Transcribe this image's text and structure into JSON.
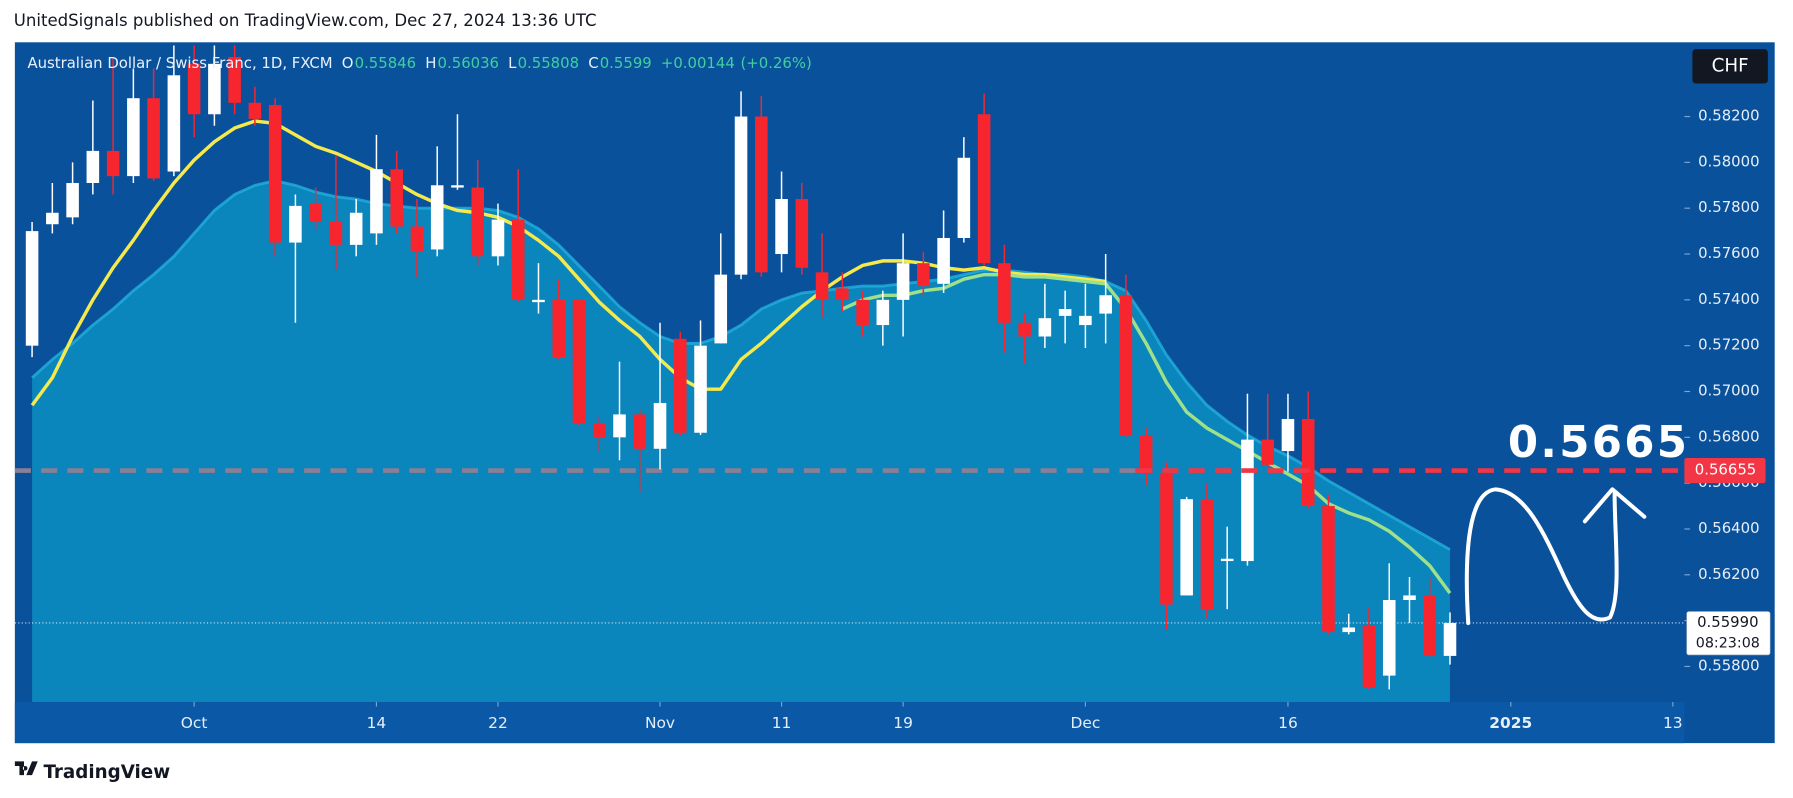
{
  "header": {
    "publisher": "UnitedSignals published on TradingView.com, Dec 27, 2024 13:36 UTC",
    "brand": "TradingView"
  },
  "chart_data": {
    "type": "candlestick",
    "title": "Australian Dollar  / Swiss Franc, 1D, FXCM",
    "currency": "CHF",
    "legend": [
      {
        "label": "O",
        "value": 0.55846
      },
      {
        "label": "H",
        "value": 0.56036
      },
      {
        "label": "L",
        "value": 0.55808
      },
      {
        "label": "C",
        "value": 0.5599
      }
    ],
    "change": {
      "value": 0.00144,
      "label": "+0.00144"
    },
    "change_percent": {
      "value": 0.26,
      "label": "(+0.26%)"
    },
    "open": [
      0.572,
      0.5773,
      0.5776,
      0.5791,
      0.5805,
      0.5794,
      0.5828,
      0.5796,
      0.5843,
      0.5821,
      0.5846,
      0.5826,
      0.5825,
      0.5765,
      0.5782,
      0.5774,
      0.5764,
      0.5769,
      0.5797,
      0.5772,
      0.5762,
      0.5789,
      0.5789,
      0.5759,
      0.5775,
      0.5739,
      0.574,
      0.574,
      0.5686,
      0.568,
      0.569,
      0.5675,
      0.5723,
      0.5682,
      0.5721,
      0.5751,
      0.582,
      0.576,
      0.5784,
      0.5752,
      0.5745,
      0.574,
      0.5729,
      0.574,
      0.5756,
      0.5747,
      0.5767,
      0.5821,
      0.5756,
      0.573,
      0.5724,
      0.5733,
      0.5729,
      0.5734,
      0.5742,
      0.5681,
      0.5664,
      0.5611,
      0.5653,
      0.5626,
      0.5626,
      0.5679,
      0.5674,
      0.5688,
      0.565,
      0.5595,
      0.5598,
      0.5576,
      0.5609,
      0.5611,
      0.55846
    ],
    "high": [
      0.5774,
      0.5791,
      0.58,
      0.5827,
      0.5846,
      0.5841,
      0.5841,
      0.5851,
      0.5851,
      0.5851,
      0.5851,
      0.5833,
      0.5828,
      0.5786,
      0.5789,
      0.5803,
      0.5784,
      0.5812,
      0.5805,
      0.5784,
      0.5807,
      0.5821,
      0.5801,
      0.5782,
      0.5797,
      0.5756,
      0.5749,
      0.574,
      0.5689,
      0.5713,
      0.5692,
      0.573,
      0.5726,
      0.5731,
      0.5769,
      0.5831,
      0.5829,
      0.5796,
      0.5791,
      0.5769,
      0.5752,
      0.5744,
      0.5744,
      0.5769,
      0.5761,
      0.5779,
      0.5811,
      0.583,
      0.5764,
      0.5734,
      0.5747,
      0.5744,
      0.5747,
      0.576,
      0.5751,
      0.5684,
      0.5669,
      0.5654,
      0.566,
      0.5641,
      0.5699,
      0.5699,
      0.5699,
      0.57,
      0.5655,
      0.5603,
      0.5606,
      0.5625,
      0.5619,
      0.5619,
      0.56036
    ],
    "low": [
      0.5715,
      0.5769,
      0.5773,
      0.5786,
      0.5786,
      0.5791,
      0.5792,
      0.5794,
      0.5811,
      0.5816,
      0.5821,
      0.5816,
      0.5759,
      0.573,
      0.5771,
      0.5753,
      0.5759,
      0.5764,
      0.5769,
      0.575,
      0.5759,
      0.5788,
      0.5755,
      0.5755,
      0.5739,
      0.5734,
      0.5714,
      0.5685,
      0.5674,
      0.567,
      0.5656,
      0.5666,
      0.5681,
      0.5681,
      0.5721,
      0.5749,
      0.575,
      0.5752,
      0.5751,
      0.5732,
      0.5735,
      0.5724,
      0.572,
      0.5724,
      0.5742,
      0.5743,
      0.5765,
      0.5755,
      0.5717,
      0.5712,
      0.5719,
      0.5721,
      0.5719,
      0.5721,
      0.568,
      0.5659,
      0.5596,
      0.5611,
      0.5601,
      0.5605,
      0.5624,
      0.5665,
      0.5665,
      0.5649,
      0.5594,
      0.5594,
      0.557,
      0.557,
      0.5599,
      0.5584,
      0.55808
    ],
    "close": [
      0.577,
      0.5778,
      0.5791,
      0.5805,
      0.5794,
      0.5828,
      0.5793,
      0.5838,
      0.5821,
      0.5843,
      0.5826,
      0.5819,
      0.5765,
      0.5781,
      0.5774,
      0.5764,
      0.5778,
      0.5797,
      0.5772,
      0.5761,
      0.579,
      0.579,
      0.5759,
      0.5775,
      0.574,
      0.574,
      0.5715,
      0.5686,
      0.568,
      0.569,
      0.5675,
      0.5695,
      0.5682,
      0.572,
      0.5751,
      0.582,
      0.5752,
      0.5784,
      0.5754,
      0.574,
      0.574,
      0.5729,
      0.574,
      0.5756,
      0.5746,
      0.5767,
      0.5802,
      0.5756,
      0.573,
      0.5724,
      0.5732,
      0.5736,
      0.5733,
      0.5742,
      0.5681,
      0.5664,
      0.5607,
      0.5653,
      0.5605,
      0.5627,
      0.5679,
      0.5668,
      0.5688,
      0.565,
      0.5595,
      0.5597,
      0.5571,
      0.5609,
      0.5611,
      0.5585,
      0.5599
    ],
    "up_color": "#ffffff",
    "down_color": "#f7252d",
    "series": [
      {
        "color": "#0a86bd",
        "edge": "#22b0dc",
        "values": [
          0.5706,
          0.5714,
          0.5721,
          0.5729,
          0.5736,
          0.5744,
          0.5751,
          0.5759,
          0.5769,
          0.5779,
          0.5786,
          0.579,
          0.5792,
          0.579,
          0.5787,
          0.5785,
          0.5784,
          0.5782,
          0.5781,
          0.578,
          0.578,
          0.578,
          0.578,
          0.5779,
          0.5776,
          0.5771,
          0.5764,
          0.5755,
          0.5746,
          0.5737,
          0.573,
          0.5724,
          0.5721,
          0.5721,
          0.5724,
          0.5729,
          0.5736,
          0.574,
          0.5743,
          0.5744,
          0.5745,
          0.5746,
          0.5746,
          0.5747,
          0.5748,
          0.5749,
          0.5751,
          0.5753,
          0.5753,
          0.5752,
          0.5751,
          0.5751,
          0.575,
          0.5748,
          0.5744,
          0.5731,
          0.5716,
          0.5704,
          0.5694,
          0.5687,
          0.5681,
          0.5676,
          0.5672,
          0.5667,
          0.5661,
          0.5656,
          0.5651,
          0.5646,
          0.5641,
          0.5636,
          0.5631
        ]
      },
      {
        "color": "#f5e94c",
        "values": [
          0.5694,
          0.5706,
          0.5724,
          0.574,
          0.5754,
          0.5766,
          0.5779,
          0.5791,
          0.5801,
          0.5809,
          0.5815,
          0.5818,
          0.5817,
          0.5812,
          0.5807,
          0.5804,
          0.58,
          0.5796,
          0.5791,
          0.5786,
          0.5782,
          0.5779,
          0.5778,
          0.5776,
          0.5772,
          0.5766,
          0.5759,
          0.5749,
          0.5739,
          0.5731,
          0.5724,
          0.5714,
          0.5706,
          0.5701,
          0.5701,
          0.5714,
          0.5721,
          0.5729,
          0.5737,
          0.5744,
          0.575,
          0.5755,
          0.5757,
          0.5757,
          0.5756,
          0.5754,
          0.5753,
          0.5754,
          0.5752,
          0.5751,
          0.5751,
          0.575,
          0.5749,
          0.5748,
          null,
          null,
          null,
          null,
          null,
          null,
          null,
          null,
          null,
          null,
          null,
          null,
          null,
          null,
          null,
          null,
          null
        ]
      },
      {
        "color": "#9fe08a",
        "values": [
          null,
          null,
          null,
          null,
          null,
          null,
          null,
          null,
          null,
          null,
          null,
          null,
          null,
          null,
          null,
          null,
          null,
          null,
          null,
          null,
          null,
          null,
          null,
          null,
          null,
          null,
          null,
          null,
          null,
          null,
          null,
          null,
          null,
          null,
          null,
          null,
          null,
          null,
          null,
          null,
          0.5736,
          0.574,
          0.5742,
          0.5742,
          0.5744,
          0.5745,
          0.5749,
          0.5751,
          0.5751,
          0.575,
          0.575,
          0.5749,
          0.5748,
          0.5747,
          0.5736,
          0.5721,
          0.5704,
          0.5691,
          0.5684,
          0.5679,
          0.5674,
          0.5669,
          0.5664,
          0.5659,
          0.5651,
          0.5647,
          0.5644,
          0.5639,
          0.5632,
          0.5624,
          0.5612
        ]
      }
    ],
    "xlim": [
      -0.85,
      81.57
    ],
    "xticks": [
      {
        "value": 8,
        "label": "Oct"
      },
      {
        "value": 17,
        "label": "14"
      },
      {
        "value": 23,
        "label": "22"
      },
      {
        "value": 31,
        "label": "Nov"
      },
      {
        "value": 37,
        "label": "11"
      },
      {
        "value": 43,
        "label": "19"
      },
      {
        "value": 52,
        "label": "Dec"
      },
      {
        "value": 62,
        "label": "16"
      },
      {
        "value": 73,
        "label": "2025"
      },
      {
        "value": 81,
        "label": "13"
      }
    ],
    "ylim": [
      0.55645,
      0.58524
    ],
    "yticks": [
      {
        "value": 0.558,
        "label": "0.55800"
      },
      {
        "value": 0.56,
        "label": "0.56000"
      },
      {
        "value": 0.562,
        "label": "0.56200"
      },
      {
        "value": 0.564,
        "label": "0.56400"
      },
      {
        "value": 0.566,
        "label": "0.56600"
      },
      {
        "value": 0.568,
        "label": "0.56800"
      },
      {
        "value": 0.57,
        "label": "0.57000"
      },
      {
        "value": 0.572,
        "label": "0.57200"
      },
      {
        "value": 0.574,
        "label": "0.57400"
      },
      {
        "value": 0.576,
        "label": "0.57600"
      },
      {
        "value": 0.578,
        "label": "0.57800"
      },
      {
        "value": 0.58,
        "label": "0.58000"
      },
      {
        "value": 0.582,
        "label": "0.58200"
      }
    ],
    "level": {
      "value": 0.56655,
      "label": "0.56655",
      "annotation": "0.5665",
      "color": "#f23645"
    },
    "last_price": {
      "value": 0.5599,
      "label": "0.55990",
      "countdown": "08:23:08"
    }
  }
}
